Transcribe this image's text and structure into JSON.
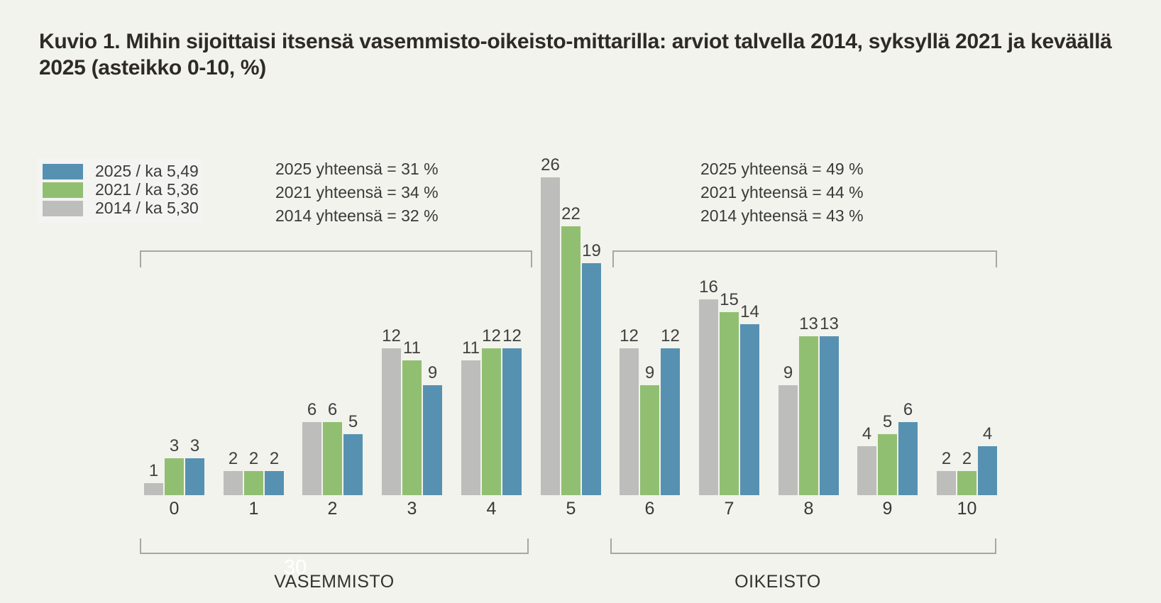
{
  "title": "Kuvio 1. Mihin sijoittaisi itsensä vasemmisto-oikeisto-mittarilla: arviot talvella 2014, syksyllä 2021 ja keväällä 2025 (asteikko 0-10, %)",
  "page_number": "30",
  "colors": {
    "background": "#f2f3ec",
    "bar_2014": "#bdbdbc",
    "bar_2021": "#91bf72",
    "bar_2025": "#5791b2",
    "bracket_line": "#a7a7a3",
    "label_text": "#404040"
  },
  "legend": {
    "items": [
      {
        "label": "2025 / ka 5,49",
        "color": "#5791b2"
      },
      {
        "label": "2021 / ka 5,36",
        "color": "#91bf72"
      },
      {
        "label": "2014 / ka 5,30",
        "color": "#bdbdbc"
      }
    ]
  },
  "totals_left": {
    "lines": [
      "2025 yhteensä =  31 %",
      "2021 yhteensä =  34 %",
      "2014 yhteensä =  32 %"
    ]
  },
  "totals_right": {
    "lines": [
      "2025 yhteensä =  49 %",
      "2021 yhteensä =  44 %",
      "2014 yhteensä =  43 %"
    ]
  },
  "axis_groups": [
    {
      "label": "VASEMMISTO",
      "categories": "0-4"
    },
    {
      "label": "OIKEISTO",
      "categories": "6-10"
    }
  ],
  "chart_data": {
    "type": "bar",
    "title": "Kuvio 1. Mihin sijoittaisi itsensä vasemmisto-oikeisto-mittarilla: arviot talvella 2014, syksyllä 2021 ja keväällä 2025 (asteikko 0-10, %)",
    "categories": [
      "0",
      "1",
      "2",
      "3",
      "4",
      "5",
      "6",
      "7",
      "8",
      "9",
      "10"
    ],
    "series": [
      {
        "name": "2014 / ka 5,30",
        "color": "#bdbdbc",
        "values": [
          1,
          2,
          6,
          12,
          11,
          26,
          12,
          16,
          9,
          4,
          2
        ]
      },
      {
        "name": "2021 / ka 5,36",
        "color": "#91bf72",
        "values": [
          3,
          2,
          6,
          11,
          12,
          22,
          9,
          15,
          13,
          5,
          2
        ]
      },
      {
        "name": "2025 / ka 5,49",
        "color": "#5791b2",
        "values": [
          3,
          2,
          5,
          9,
          12,
          19,
          12,
          14,
          13,
          6,
          4
        ]
      }
    ],
    "xlabel": "",
    "ylabel": "",
    "ylim": [
      0,
      28
    ],
    "grid": false,
    "data_labels": true,
    "legend_position": "top-left",
    "group_labels": [
      "VASEMMISTO",
      "OIKEISTO"
    ]
  }
}
